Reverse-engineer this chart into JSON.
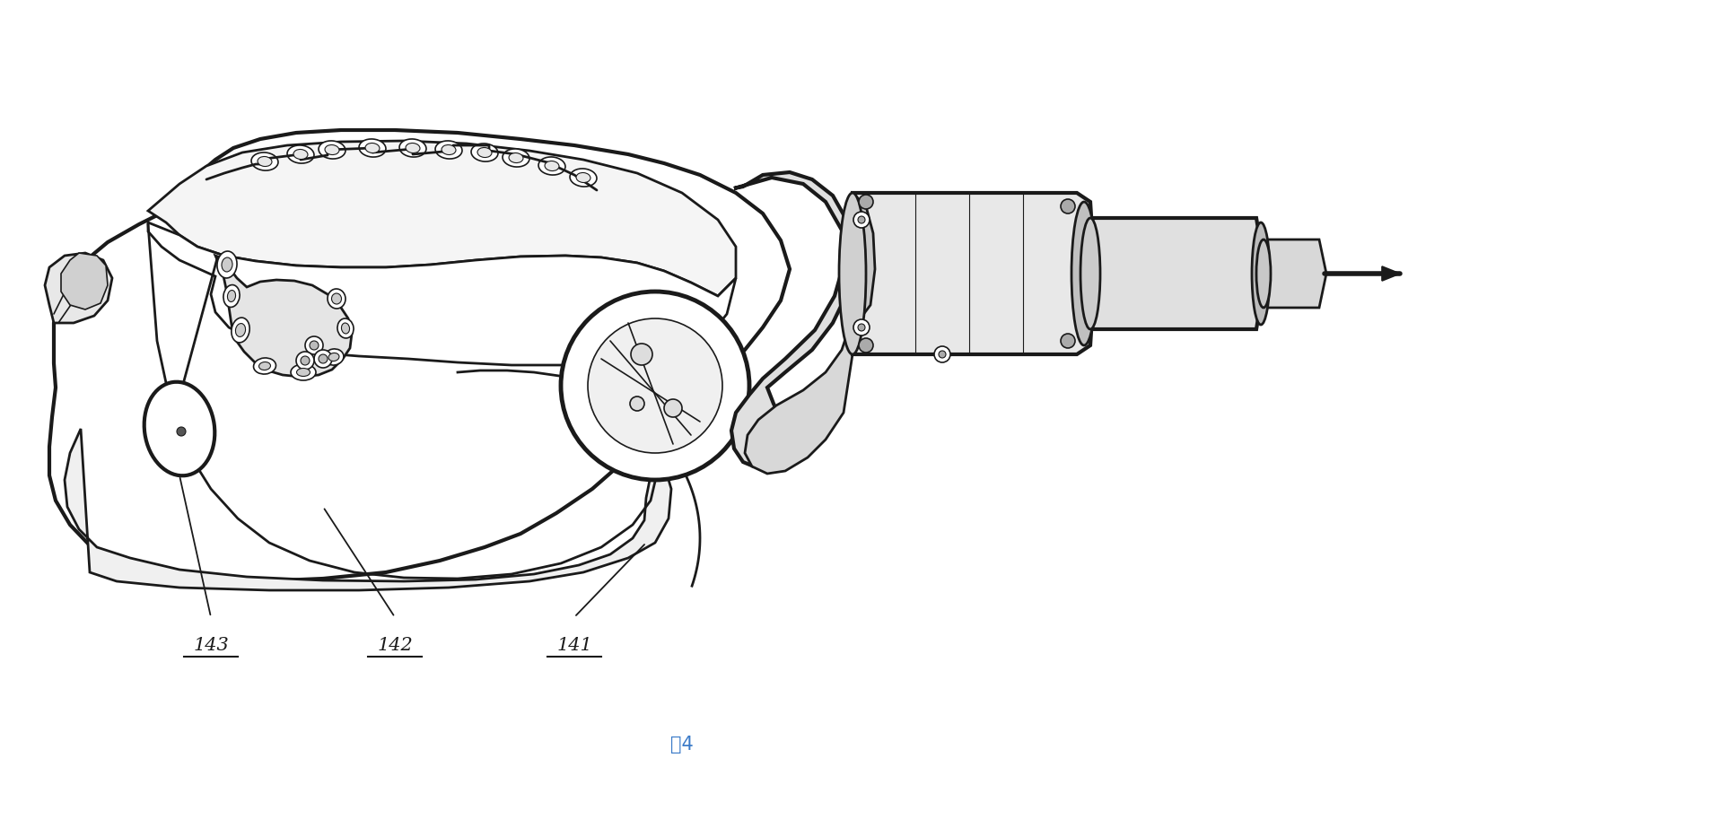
{
  "title": "图4",
  "labels": [
    "143",
    "142",
    "141"
  ],
  "background_color": "#ffffff",
  "line_color": "#1a1a1a",
  "figsize": [
    19.2,
    9.13
  ],
  "dpi": 100,
  "title_color": "#3a7ac8",
  "title_fontsize": 15,
  "label_fontsize": 14
}
